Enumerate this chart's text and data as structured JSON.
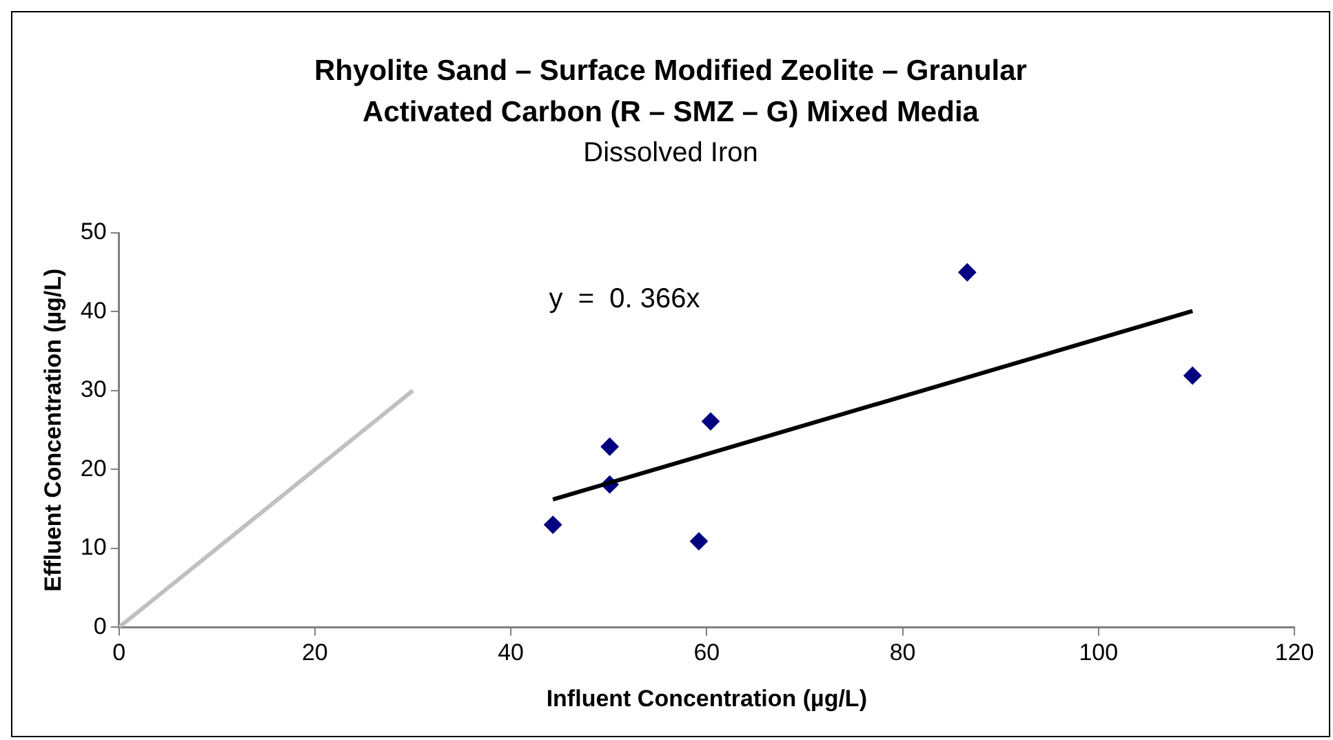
{
  "chart_data": {
    "type": "scatter",
    "title": "Rhyolite Sand – Surface Modified Zeolite – Granular Activated Carbon (R – SMZ – G) Mixed Media",
    "subtitle": "Dissolved Iron",
    "xlabel": "Influent Concentration (µg/L)",
    "ylabel": "Effluent Concentration (µg/L)",
    "series": [
      {
        "type": "line",
        "color": "#c0c0c0",
        "x": [
          0,
          30
        ],
        "values": [
          0,
          30
        ],
        "marker": "none"
      },
      {
        "type": "line",
        "color": "#000000",
        "x": [
          44.3,
          109.6
        ],
        "values": [
          16.2,
          40.1
        ],
        "marker": "none"
      },
      {
        "color": "#000080",
        "x": [
          44.3,
          50.1,
          50.1,
          59.2,
          60.4,
          86.6,
          109.6
        ],
        "values": [
          13.0,
          22.9,
          18.1,
          10.9,
          26.1,
          45.0,
          31.9
        ],
        "marker": "diamond"
      }
    ],
    "annotations": [
      "y  =  0. 366x"
    ],
    "xlim": [
      0,
      120
    ],
    "xticks": [
      0,
      20,
      40,
      60,
      80,
      100,
      120
    ],
    "ylim": [
      0,
      50
    ],
    "yticks": [
      0,
      10,
      20,
      30,
      40,
      50
    ],
    "grid": false,
    "legend": false
  }
}
